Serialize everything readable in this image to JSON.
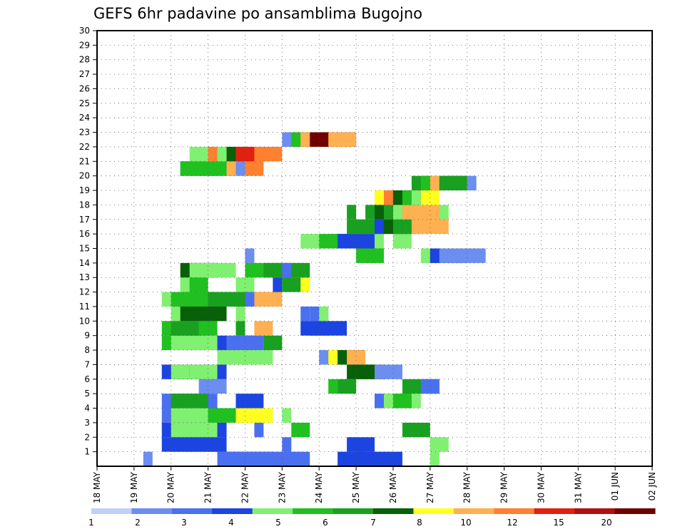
{
  "chart_data": {
    "type": "heatmap",
    "title": "GEFS 6hr padavine po ansamblima Bugojno",
    "xlabel": "",
    "ylabel": "",
    "y_ticks": [
      "1",
      "2",
      "3",
      "4",
      "5",
      "6",
      "7",
      "8",
      "9",
      "10",
      "11",
      "12",
      "13",
      "14",
      "15",
      "16",
      "17",
      "18",
      "19",
      "20",
      "21",
      "22",
      "23",
      "24",
      "25",
      "26",
      "27",
      "28",
      "29",
      "30"
    ],
    "x_ticks": [
      "18 MAY",
      "19 MAY",
      "20 MAY",
      "21 MAY",
      "22 MAY",
      "23 MAY",
      "24 MAY",
      "25 MAY",
      "26 MAY",
      "27 MAY",
      "28 MAY",
      "29 MAY",
      "30 MAY",
      "31 MAY",
      "01 JUN",
      "02 JUN"
    ],
    "grid": true,
    "colorbar": {
      "tick_labels": [
        "1",
        "2",
        "3",
        "4",
        "5",
        "6",
        "7",
        "8",
        "10",
        "12",
        "15",
        "20"
      ],
      "colors": [
        "#c0d0f8",
        "#6b8ef0",
        "#4a70f0",
        "#1c44e0",
        "#80f070",
        "#20c020",
        "#1aa020",
        "#086008",
        "#ffff20",
        "#ffb050",
        "#ff8030",
        "#e02010",
        "#b01010",
        "#700000"
      ]
    },
    "x_steps_per_day": 4,
    "members": 30,
    "cells": [
      [
        1,
        1,
        5,
        1
      ],
      [
        1,
        2,
        13,
        6
      ],
      [
        1,
        2,
        14,
        9
      ],
      [
        1,
        3,
        26,
        3
      ],
      [
        1,
        3,
        28,
        5
      ],
      [
        1,
        4,
        36,
        1
      ],
      [
        2,
        3,
        7,
        7
      ],
      [
        2,
        3,
        8,
        5
      ],
      [
        2,
        2,
        20,
        1
      ],
      [
        2,
        3,
        27,
        3
      ],
      [
        2,
        4,
        36,
        2
      ],
      [
        3,
        3,
        7,
        7
      ],
      [
        3,
        4,
        8,
        5
      ],
      [
        3,
        2,
        17,
        1
      ],
      [
        3,
        5,
        21,
        2
      ],
      [
        3,
        6,
        33,
        3
      ],
      [
        4,
        2,
        7,
        6
      ],
      [
        4,
        4,
        8,
        6
      ],
      [
        4,
        5,
        12,
        4
      ],
      [
        4,
        8,
        15,
        4
      ],
      [
        4,
        8,
        16,
        3
      ],
      [
        4,
        4,
        20,
        1
      ],
      [
        5,
        2,
        7,
        6
      ],
      [
        5,
        6,
        8,
        4
      ],
      [
        5,
        3,
        15,
        3
      ],
      [
        5,
        2,
        30,
        4
      ],
      [
        5,
        4,
        31,
        4
      ],
      [
        5,
        5,
        32,
        2
      ],
      [
        6,
        1,
        11,
        3
      ],
      [
        6,
        5,
        25,
        1
      ],
      [
        6,
        6,
        26,
        2
      ],
      [
        6,
        6,
        27,
        1
      ],
      [
        6,
        6,
        33,
        4
      ],
      [
        6,
        2,
        35,
        2
      ],
      [
        7,
        3,
        7,
        7
      ],
      [
        7,
        4,
        8,
        2
      ],
      [
        7,
        4,
        10,
        3
      ],
      [
        7,
        7,
        27,
        4
      ],
      [
        7,
        7,
        28,
        2
      ],
      [
        7,
        1,
        30,
        3
      ],
      [
        8,
        4,
        13,
        4
      ],
      [
        8,
        4,
        14,
        5
      ],
      [
        8,
        1,
        24,
        3
      ],
      [
        8,
        8,
        25,
        2
      ],
      [
        8,
        7,
        26,
        3
      ],
      [
        8,
        9,
        27,
        2
      ],
      [
        9,
        5,
        7,
        5
      ],
      [
        9,
        4,
        8,
        5
      ],
      [
        9,
        3,
        13,
        1
      ],
      [
        9,
        2,
        14,
        3
      ],
      [
        9,
        2,
        16,
        2
      ],
      [
        9,
        6,
        18,
        2
      ],
      [
        10,
        5,
        7,
        6
      ],
      [
        10,
        6,
        8,
        3
      ],
      [
        10,
        6,
        15,
        1
      ],
      [
        10,
        9,
        17,
        2
      ],
      [
        10,
        3,
        22,
        3
      ],
      [
        10,
        3,
        23,
        4
      ],
      [
        11,
        4,
        8,
        6
      ],
      [
        11,
        7,
        9,
        5
      ],
      [
        11,
        4,
        15,
        1
      ],
      [
        11,
        2,
        22,
        1
      ],
      [
        11,
        2,
        23,
        2
      ],
      [
        11,
        4,
        24,
        1
      ],
      [
        12,
        4,
        7,
        8
      ],
      [
        12,
        5,
        8,
        6
      ],
      [
        12,
        5,
        9,
        4
      ],
      [
        12,
        6,
        12,
        5
      ],
      [
        12,
        2,
        16,
        3
      ],
      [
        12,
        9,
        17,
        3
      ],
      [
        13,
        4,
        9,
        3
      ],
      [
        13,
        5,
        10,
        2
      ],
      [
        13,
        4,
        15,
        2
      ],
      [
        13,
        3,
        19,
        1
      ],
      [
        13,
        6,
        20,
        3
      ],
      [
        13,
        8,
        22,
        1
      ],
      [
        14,
        7,
        9,
        4
      ],
      [
        14,
        4,
        10,
        2
      ],
      [
        14,
        4,
        11,
        4
      ],
      [
        14,
        5,
        16,
        4
      ],
      [
        14,
        6,
        18,
        5
      ],
      [
        14,
        2,
        20,
        1
      ],
      [
        15,
        1,
        16,
        1
      ],
      [
        15,
        5,
        28,
        2
      ],
      [
        15,
        5,
        29,
        2
      ],
      [
        15,
        4,
        35,
        3
      ],
      [
        15,
        3,
        36,
        4
      ],
      [
        15,
        1,
        37,
        5
      ],
      [
        16,
        4,
        22,
        2
      ],
      [
        16,
        5,
        24,
        3
      ],
      [
        16,
        5,
        25,
        3
      ],
      [
        16,
        3,
        26,
        4
      ],
      [
        16,
        4,
        30,
        1
      ],
      [
        16,
        4,
        32,
        2
      ],
      [
        17,
        6,
        27,
        4
      ],
      [
        17,
        3,
        30,
        2
      ],
      [
        17,
        7,
        31,
        3
      ],
      [
        17,
        6,
        32,
        1
      ],
      [
        17,
        6,
        33,
        2
      ],
      [
        17,
        9,
        34,
        4
      ],
      [
        18,
        6,
        27,
        1
      ],
      [
        18,
        6,
        29,
        2
      ],
      [
        18,
        7,
        30,
        1
      ],
      [
        18,
        6,
        31,
        3
      ],
      [
        18,
        4,
        32,
        6
      ],
      [
        18,
        9,
        33,
        4
      ],
      [
        19,
        8,
        30,
        1
      ],
      [
        19,
        10,
        31,
        4
      ],
      [
        19,
        7,
        32,
        3
      ],
      [
        19,
        5,
        33,
        2
      ],
      [
        19,
        4,
        34,
        1
      ],
      [
        19,
        8,
        35,
        2
      ],
      [
        20,
        6,
        34,
        2
      ],
      [
        20,
        5,
        35,
        4
      ],
      [
        20,
        9,
        36,
        1
      ],
      [
        20,
        6,
        37,
        3
      ],
      [
        20,
        6,
        38,
        2
      ],
      [
        20,
        1,
        40,
        1
      ],
      [
        21,
        2,
        9,
        5
      ],
      [
        21,
        5,
        9,
        6
      ],
      [
        21,
        5,
        10,
        3
      ],
      [
        21,
        1,
        14,
        2
      ],
      [
        21,
        9,
        14,
        1
      ],
      [
        21,
        10,
        16,
        2
      ],
      [
        22,
        4,
        10,
        6
      ],
      [
        22,
        4,
        12,
        2
      ],
      [
        22,
        10,
        12,
        1
      ],
      [
        22,
        7,
        14,
        1
      ],
      [
        22,
        10,
        15,
        5
      ],
      [
        22,
        11,
        15,
        2
      ],
      [
        23,
        1,
        20,
        5
      ],
      [
        23,
        5,
        21,
        4
      ],
      [
        23,
        9,
        22,
        4
      ],
      [
        23,
        13,
        23,
        3
      ],
      [
        23,
        13,
        24,
        4
      ],
      [
        23,
        9,
        25,
        3
      ]
    ]
  }
}
